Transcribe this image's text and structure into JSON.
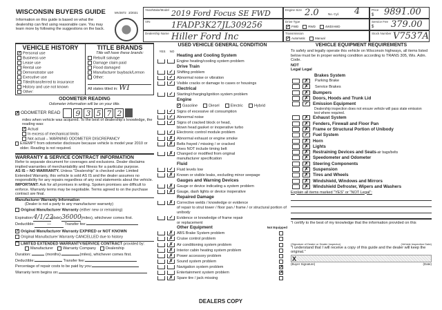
{
  "header": {
    "title": "WISCONSIN BUYERS GUIDE",
    "form_number": "MV2872",
    "form_date": "3/2021",
    "intro": "Information on this guide is based on what the dealership can find using reasonable care. You may learn more by following the suggestions on the back."
  },
  "vehicle": {
    "year_make_model_label": "Year/Make/Model",
    "year_make_model": "2019 Ford Focus SE FWD",
    "vin_label": "VIN",
    "vin": "1FADP3K27JL309256",
    "dealer_label": "Dealership Name",
    "dealer": "Hiller Ford Inc",
    "engine_label": "Engine Size",
    "engine_size": "2.0",
    "cyl_label": "No. Cyl.",
    "cyl": "4",
    "drive_label": "Drive Type",
    "drive_options": [
      "FWD",
      "RWD",
      "4WD/AWD"
    ],
    "drive_selected": "FWD",
    "trans_label": "Transmission",
    "trans_options": [
      "Automatic",
      "Manual"
    ],
    "trans_selected": "Automatic",
    "price_label": "Price",
    "price": "9891.00",
    "service_fee_label": "Service Fee",
    "service_fee": "379.00",
    "stock_label": "Stock Number",
    "stock": "V7537A",
    "currency": "$"
  },
  "history": {
    "title": "VEHICLE HISTORY",
    "items": [
      {
        "label": "Personal use",
        "checked": true
      },
      {
        "label": "Business use",
        "checked": false
      },
      {
        "label": "Lease use",
        "checked": false
      },
      {
        "label": "Rental use",
        "checked": false
      },
      {
        "label": "Demonstrator use",
        "checked": false
      },
      {
        "label": "Executive use",
        "checked": false
      },
      {
        "label": "Titled/transferred to insurance",
        "checked": false
      },
      {
        "label": "History and use not known",
        "checked": false
      },
      {
        "label": "Other:",
        "checked": false
      }
    ]
  },
  "brands": {
    "title": "TITLE BRANDS",
    "subtitle": "Title will have these brands:",
    "items": [
      {
        "label": "Rebuilt salvage"
      },
      {
        "label": "Damage claim paid"
      },
      {
        "label": "Flood damaged"
      },
      {
        "label": "Manufacturer buyback/Lemon"
      },
      {
        "label": "Other:"
      }
    ],
    "states_label": "All states titled in:",
    "states": "WI"
  },
  "odometer": {
    "title": "ODOMETER READING",
    "subtitle": "Odometer information will be on your title.",
    "read_label": "ODOMETER READ",
    "digits": [
      "",
      "9",
      "3",
      "5",
      "7",
      "2"
    ],
    "desc": "miles when vehicle was acquired. To the best of dealership's knowledge, the reading was:",
    "options": [
      {
        "label": "Actual",
        "checked": true
      },
      {
        "label": "In excess of mechanical limits",
        "checked": false
      },
      {
        "label": "Not actual – WARNING ODOMETER DISCREPANCY",
        "checked": false
      }
    ],
    "exempt": "EXEMPT from odometer disclosure because vehicle is model year 2010 or older. Reading is not required."
  },
  "warranty": {
    "title": "WARRANTY & SERVICE CONTRACT INFORMATION",
    "p1": "Refer to separate document for coverages and exclusions. Dealer disclaims implied warranties of merchantability and fitness for a particular purpose.",
    "as_is_head": "AS IS – NO WARRANTY.",
    "as_is": " Unless \"Dealership\" is checked under Limited Extended Warranty, this vehicle is sold AS IS and the dealer assumes no responsibility for any repairs regardless of any oral statements about the vehicle.",
    "important_head": "IMPORTANT:",
    "important": " Ask for all promises in writing. Spoken promises are difficult to enforce. Warranty terms may be negotiable. Terms agreed to on the purchase contract are final.",
    "mfr_title": "Manufacturer Warranty Information",
    "mfr_sub": "(Dealer is not a party to any manufacturer warranty)",
    "orig": "Original Manufacturer Warranty",
    "orig_note": "(either new or remaining)",
    "expiration_label": "Expiration:",
    "expiration_date": "4/1/22",
    "date_label": "(date)",
    "expiration_miles": "36000",
    "miles_label": "(miles), whichever comes first.",
    "deductible_label": "Deductible:",
    "deductible": "—",
    "transfer_label": "Transfer fee:",
    "expired": "Original Manufacturer Warranty EXPIRED or NOT KNOWN",
    "expired_checked": true,
    "cancelled": "Original Manufacturer Warranty CANCELLED due to history",
    "limited": "LIMITED EXTENDED WARRANTY/SERVICE CONTRACT",
    "limited_by": "provided by:",
    "by_options": [
      "Manufacturer",
      "Warranty Company",
      "Dealership"
    ],
    "duration_label": "Duration:",
    "months_label": "(months)",
    "miles2_label": "(miles), whichever comes first.",
    "deductible2_label": "Deductible:",
    "transfer2_label": "Transfer fee:",
    "pct_label": "Percentage of repair costs to be paid by you:",
    "begins_label": "Warranty term begins on:"
  },
  "condition": {
    "title": "USED VEHICLE GENERAL CONDITION",
    "yes_label": "YES",
    "no_label": "NO",
    "not_equipped_label": "Not Equipped",
    "fuel_options": [
      "Gasoline",
      "Diesel",
      "Electric",
      "Hybrid"
    ],
    "fuel_selected": "Gasoline",
    "groups": [
      {
        "name": "Heating and Cooling System",
        "items": [
          {
            "label": "Engine heating/cooling system problem",
            "no": ""
          }
        ]
      },
      {
        "name": "Drive Train",
        "items": [
          {
            "label": "Shifting problem",
            "no": "✓"
          },
          {
            "label": "Abnormal noise or vibration",
            "no": "✓"
          },
          {
            "label": "Visible cracks or damage to cases or housings",
            "no": "✓"
          }
        ]
      },
      {
        "name": "Electrical",
        "items": [
          {
            "label": "Starting/charging/ignition system problem",
            "no": "✓"
          }
        ]
      },
      {
        "name": "Engine",
        "fuel": true,
        "items": [
          {
            "label": "Signs of excessive oil consumption",
            "no": "✓"
          },
          {
            "label": "Abnormal noise",
            "no": "✓"
          },
          {
            "label": "Signs of cracked block or head,",
            "sub": "blown head gasket or inoperative turbo",
            "no": "✓"
          },
          {
            "label": "Electronic control module problem",
            "no": "✓"
          },
          {
            "label": "Abnormal exhaust or engine smoke",
            "no": "✗"
          },
          {
            "label": "Belts frayed / missing / or cracked",
            "sub": "Does NOT include timing belt",
            "no": "✗"
          },
          {
            "label": "Changed or modified from original",
            "sub": "manufacturer specification",
            "no": "✗"
          }
        ]
      },
      {
        "name": "Fluid",
        "items": [
          {
            "label": "Fluid levels low",
            "no": "✓"
          },
          {
            "label": "Known or visible leaks, excluding minor seepage",
            "no": "✗"
          }
        ]
      },
      {
        "name": "Gauges and Warning Devices",
        "items": [
          {
            "label": "Gauge or device indicating a system problem",
            "no": "✗"
          },
          {
            "label": "Gauge, dash lights or device inoperative",
            "no": "✗"
          }
        ]
      },
      {
        "name": "Repaired Damage",
        "items": [
          {
            "label": "Corrective welds / knowledge or evidence",
            "sub": "of repair to strut tower / floor pan / frame / or structural portion of unibody",
            "no": "✗"
          },
          {
            "label": "Evidence or knowledge of frame repair",
            "sub": "or replacement",
            "no": "✓"
          }
        ]
      }
    ],
    "other_title": "Other Equipment",
    "other": [
      {
        "label": "ABS Brake System problem",
        "no": "✗",
        "ne": ""
      },
      {
        "label": "Cruise control problem",
        "no": "✗",
        "ne": ""
      },
      {
        "label": "Air conditioning system problem",
        "no": "✗",
        "ne": ""
      },
      {
        "label": "Interior cabin heating system problem",
        "no": "✗",
        "ne": ""
      },
      {
        "label": "Power accessory problem",
        "no": "✗",
        "ne": ""
      },
      {
        "label": "Sound system problem",
        "no": "✗",
        "ne": ""
      },
      {
        "label": "Navigation system problem",
        "no": "",
        "ne": "✗"
      },
      {
        "label": "Entertainment system problem",
        "no": "",
        "ne": "✗"
      },
      {
        "label": "Spare tire / jack missing",
        "no": "✗",
        "ne": ""
      }
    ]
  },
  "equipment": {
    "title": "VEHICLE EQUIPMENT REQUIREMENTS",
    "intro": "To safely and legally operate this vehicle on Wisconsin highways, all items listed below must be in proper working condition according to TRANS 305, Wis. Adm. Code.",
    "not_label": "NOT",
    "not_legal_label": "Legal",
    "legal_label": "Legal",
    "items": [
      {
        "label": "Brakes System",
        "head": true
      },
      {
        "label": "Parking Brake",
        "sub": true,
        "legal": "✗"
      },
      {
        "label": "Service Brakes",
        "sub": true,
        "legal": "✗"
      },
      {
        "label": "Bumpers",
        "legal": "✗"
      },
      {
        "label": "Doors, Hoods and Trunk Lid",
        "legal": "✗"
      },
      {
        "label": "Emission Equipment",
        "legal": "✓",
        "note": "Dealership inspection does not ensure vehicle will pass state emission test where required."
      },
      {
        "label": "Exhaust System",
        "legal": "✗"
      },
      {
        "label": "Fenders, Firewall and Floor Pan",
        "legal": "✗"
      },
      {
        "label": "Frame or Structural Portion of Unibody",
        "legal": "✗"
      },
      {
        "label": "Fuel System",
        "legal": "✓"
      },
      {
        "label": "Horn",
        "legal": "✗"
      },
      {
        "label": "Lights",
        "legal": "✗"
      },
      {
        "label": "Restraining Devices and Seats",
        "extra": "-air bags/belts",
        "legal": "✗"
      },
      {
        "label": "Speedometer and Odometer",
        "legal": "✗"
      },
      {
        "label": "Steering Components",
        "legal": "✗"
      },
      {
        "label": "Suspension",
        "legal": "✗"
      },
      {
        "label": "Tires and Wheels",
        "legal": "✗"
      },
      {
        "label": "Windshield, Windows and Mirrors",
        "legal": "✗"
      },
      {
        "label": "Windshield Defroster, Wipers and Washers",
        "legal": "✗"
      }
    ],
    "explain": "Explain all items marked \"YES\" or \"NOT Legal\":",
    "certify": "\"I certify to the best of my knowledge that the information provided on this",
    "inspector_label": "(Signature of Dealer or Dealer Inspector)",
    "inspection_date_label": "(Vehicle Inspection Date)",
    "understand": "\"I understand that I will receive a copy of this guide and the dealer will keep the original.\"",
    "x_mark": "X",
    "buyer_sig_label": "(Buyer Signature)",
    "date_label": "(Date)"
  },
  "footer": {
    "copy": "DEALERS COPY"
  }
}
